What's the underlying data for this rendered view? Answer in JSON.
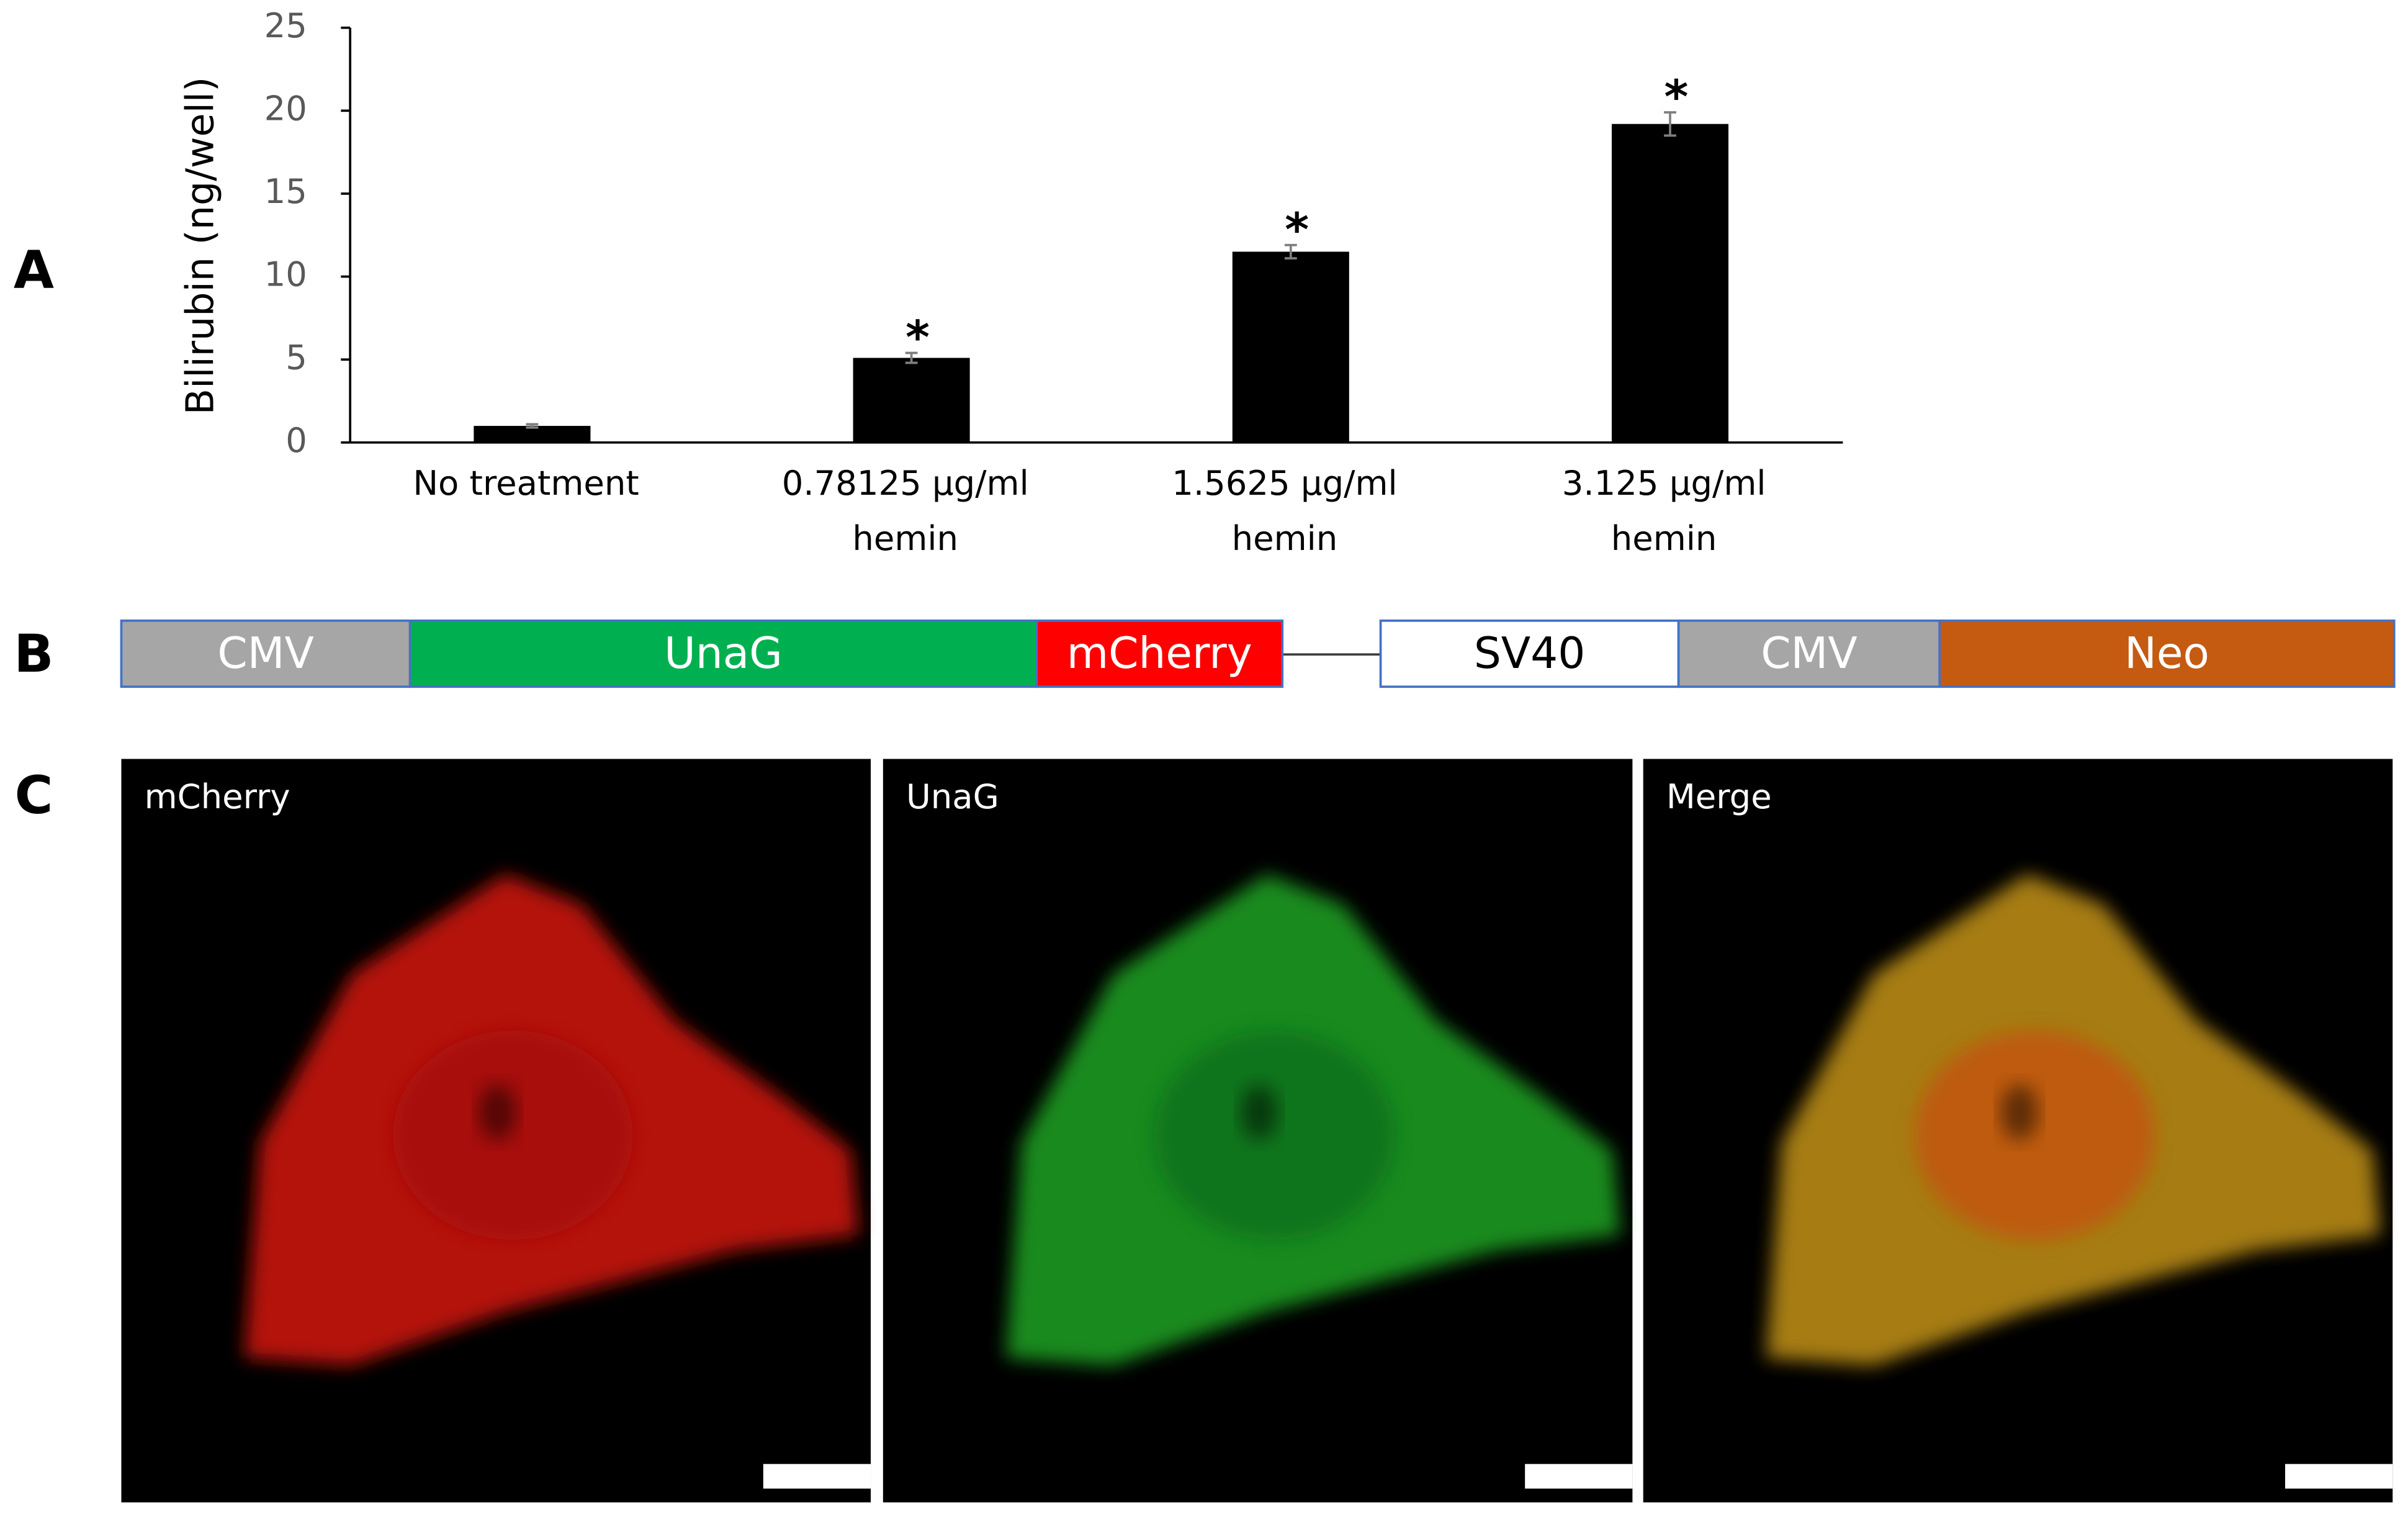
{
  "panel_labels": [
    "A",
    "B",
    "C"
  ],
  "chart_data": {
    "type": "bar",
    "categories": [
      "No treatment",
      "0.78125 μg/ml\nhemin",
      "1.5625 μg/ml\nhemin",
      "3.125 μg/ml\nhemin"
    ],
    "values": [
      1.0,
      5.1,
      11.5,
      19.2
    ],
    "errors": [
      0.1,
      0.3,
      0.4,
      0.7
    ],
    "markers": [
      null,
      "*",
      "*",
      "*"
    ],
    "color": "#000000",
    "y_label": "Bilirubin (ng/well)",
    "ylim": [
      0,
      25
    ],
    "yticks": [
      0,
      5,
      10,
      15,
      20,
      25
    ],
    "grid": false
  },
  "construct": {
    "segments": [
      "CMV",
      "UnaG",
      "mCherry",
      "SV40",
      "CMV",
      "Neo"
    ]
  },
  "images": {
    "labels": [
      "mCherry",
      "UnaG",
      "Merge"
    ]
  }
}
